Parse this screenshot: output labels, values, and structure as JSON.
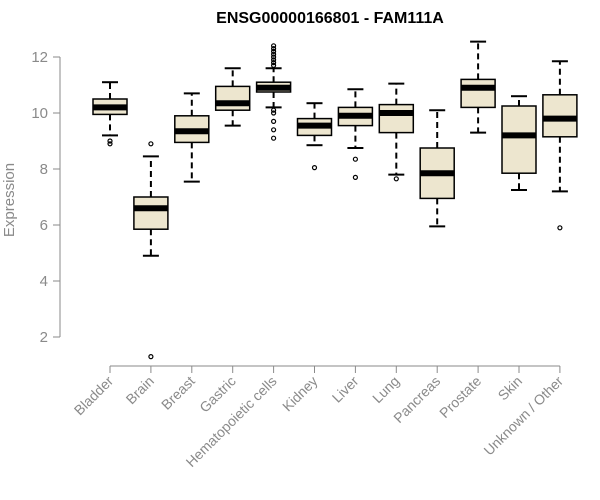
{
  "chart_data": {
    "type": "boxplot",
    "title": "ENSG00000166801 - FAM111A",
    "xlabel": "",
    "ylabel": "Expression",
    "ylim": [
      1.0,
      12.6
    ],
    "yticks": [
      2,
      4,
      6,
      8,
      10,
      12
    ],
    "colors": {
      "box_fill": "#ede6cf",
      "median": "#000000",
      "axis": "#8a8a8a"
    },
    "categories": [
      "Bladder",
      "Brain",
      "Breast",
      "Gastric",
      "Hematopoietic cells",
      "Kidney",
      "Liver",
      "Lung",
      "Pancreas",
      "Prostate",
      "Skin",
      "Unknown / Other"
    ],
    "series": [
      {
        "name": "Bladder",
        "min": 9.2,
        "q1": 9.95,
        "median": 10.2,
        "q3": 10.5,
        "max": 11.1,
        "outliers": [
          9.0,
          8.9
        ]
      },
      {
        "name": "Brain",
        "min": 4.9,
        "q1": 5.85,
        "median": 6.6,
        "q3": 7.0,
        "max": 8.45,
        "outliers": [
          8.9,
          1.3
        ]
      },
      {
        "name": "Breast",
        "min": 7.55,
        "q1": 8.95,
        "median": 9.35,
        "q3": 9.9,
        "max": 10.7,
        "outliers": []
      },
      {
        "name": "Gastric",
        "min": 9.55,
        "q1": 10.1,
        "median": 10.35,
        "q3": 10.95,
        "max": 11.6,
        "outliers": []
      },
      {
        "name": "Hematopoietic cells",
        "min": 10.2,
        "q1": 10.75,
        "median": 10.9,
        "q3": 11.1,
        "max": 11.6,
        "outliers": [
          9.1,
          9.4,
          9.7,
          10.0,
          10.1,
          11.7,
          11.8,
          11.9,
          12.0,
          12.1,
          12.2,
          12.3,
          12.4
        ]
      },
      {
        "name": "Kidney",
        "min": 8.85,
        "q1": 9.2,
        "median": 9.55,
        "q3": 9.8,
        "max": 10.35,
        "outliers": [
          8.05
        ]
      },
      {
        "name": "Liver",
        "min": 8.75,
        "q1": 9.55,
        "median": 9.9,
        "q3": 10.2,
        "max": 10.85,
        "outliers": [
          8.35,
          7.7
        ]
      },
      {
        "name": "Lung",
        "min": 7.8,
        "q1": 9.3,
        "median": 10.0,
        "q3": 10.3,
        "max": 11.05,
        "outliers": [
          7.65
        ]
      },
      {
        "name": "Pancreas",
        "min": 5.95,
        "q1": 6.95,
        "median": 7.85,
        "q3": 8.75,
        "max": 10.1,
        "outliers": []
      },
      {
        "name": "Prostate",
        "min": 9.3,
        "q1": 10.2,
        "median": 10.9,
        "q3": 11.2,
        "max": 12.55,
        "outliers": []
      },
      {
        "name": "Skin",
        "min": 7.25,
        "q1": 7.85,
        "median": 9.2,
        "q3": 10.25,
        "max": 10.6,
        "outliers": []
      },
      {
        "name": "Unknown / Other",
        "min": 7.2,
        "q1": 9.15,
        "median": 9.8,
        "q3": 10.65,
        "max": 11.85,
        "outliers": [
          5.9
        ]
      }
    ]
  }
}
